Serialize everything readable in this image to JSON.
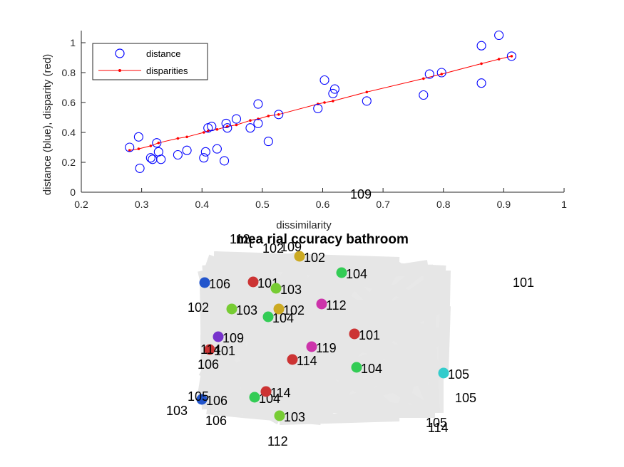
{
  "chart_data": [
    {
      "type": "scatter",
      "xlabel": "dissimilarity",
      "ylabel": "distance (blue), disparity (red)",
      "xlim": [
        0.2,
        1.0
      ],
      "ylim": [
        0,
        1.05
      ],
      "x_ticks": [
        "0.2",
        "0.3",
        "0.4",
        "0.5",
        "0.6",
        "0.7",
        "0.8",
        "0.9",
        "1"
      ],
      "y_ticks": [
        "0",
        "0.2",
        "0.4",
        "0.6",
        "0.8",
        "1"
      ],
      "legend_position": "top-left",
      "grid": false,
      "series": [
        {
          "name": "distance",
          "marker": "open-circle",
          "color": "#0000ff",
          "points": [
            [
              0.28,
              0.3
            ],
            [
              0.295,
              0.37
            ],
            [
              0.297,
              0.16
            ],
            [
              0.315,
              0.23
            ],
            [
              0.318,
              0.22
            ],
            [
              0.325,
              0.33
            ],
            [
              0.328,
              0.27
            ],
            [
              0.332,
              0.22
            ],
            [
              0.36,
              0.25
            ],
            [
              0.375,
              0.28
            ],
            [
              0.403,
              0.23
            ],
            [
              0.406,
              0.27
            ],
            [
              0.41,
              0.43
            ],
            [
              0.416,
              0.44
            ],
            [
              0.425,
              0.29
            ],
            [
              0.437,
              0.21
            ],
            [
              0.44,
              0.46
            ],
            [
              0.442,
              0.43
            ],
            [
              0.457,
              0.49
            ],
            [
              0.48,
              0.43
            ],
            [
              0.493,
              0.59
            ],
            [
              0.493,
              0.46
            ],
            [
              0.51,
              0.34
            ],
            [
              0.527,
              0.52
            ],
            [
              0.592,
              0.56
            ],
            [
              0.603,
              0.75
            ],
            [
              0.617,
              0.66
            ],
            [
              0.62,
              0.69
            ],
            [
              0.673,
              0.61
            ],
            [
              0.767,
              0.65
            ],
            [
              0.777,
              0.79
            ],
            [
              0.797,
              0.8
            ],
            [
              0.863,
              0.98
            ],
            [
              0.863,
              0.73
            ],
            [
              0.892,
              1.05
            ],
            [
              0.913,
              0.91
            ]
          ]
        },
        {
          "name": "disparities",
          "marker": "dot-line",
          "color": "#ff0000",
          "points": [
            [
              0.28,
              0.28
            ],
            [
              0.295,
              0.29
            ],
            [
              0.315,
              0.31
            ],
            [
              0.328,
              0.33
            ],
            [
              0.36,
              0.36
            ],
            [
              0.375,
              0.37
            ],
            [
              0.403,
              0.4
            ],
            [
              0.41,
              0.41
            ],
            [
              0.425,
              0.42
            ],
            [
              0.442,
              0.44
            ],
            [
              0.457,
              0.45
            ],
            [
              0.48,
              0.48
            ],
            [
              0.493,
              0.49
            ],
            [
              0.51,
              0.51
            ],
            [
              0.527,
              0.52
            ],
            [
              0.592,
              0.59
            ],
            [
              0.603,
              0.6
            ],
            [
              0.617,
              0.61
            ],
            [
              0.673,
              0.67
            ],
            [
              0.767,
              0.76
            ],
            [
              0.797,
              0.79
            ],
            [
              0.863,
              0.86
            ],
            [
              0.892,
              0.89
            ],
            [
              0.913,
              0.91
            ]
          ]
        }
      ]
    },
    {
      "type": "network",
      "title": "mea rial ccuracy bathroom",
      "title_overlay_labels": [
        "112",
        "t",
        "102",
        "109"
      ],
      "edge_color": "#e6e6e6",
      "nodes": [
        {
          "label": "106",
          "color": "#2255cc"
        },
        {
          "label": "101",
          "color": "#cc3333"
        },
        {
          "label": "103",
          "color": "#77cc33"
        },
        {
          "label": "102",
          "color": "#ccaa22"
        },
        {
          "label": "104",
          "color": "#33cc55"
        },
        {
          "label": "103",
          "color": "#77cc33"
        },
        {
          "label": "104",
          "color": "#33cc55"
        },
        {
          "label": "102",
          "color": "#ccaa22"
        },
        {
          "label": "112",
          "color": "#cc33aa"
        },
        {
          "label": "109",
          "color": "#7733cc"
        },
        {
          "label": "101",
          "color": "#cc3333"
        },
        {
          "label": "119",
          "color": "#cc33aa"
        },
        {
          "label": "101",
          "color": "#cc3333"
        },
        {
          "label": "114",
          "color": "#cc3333"
        },
        {
          "label": "104",
          "color": "#33cc55"
        },
        {
          "label": "105",
          "color": "#33cccc"
        },
        {
          "label": "106",
          "color": "#2255cc"
        },
        {
          "label": "104",
          "color": "#33cc55"
        },
        {
          "label": "114",
          "color": "#cc3333"
        },
        {
          "label": "103",
          "color": "#77cc33"
        }
      ],
      "floating_labels": [
        "109",
        "101",
        "102",
        "114",
        "106",
        "105",
        "103",
        "106",
        "105",
        "105",
        "114",
        "112"
      ]
    }
  ]
}
